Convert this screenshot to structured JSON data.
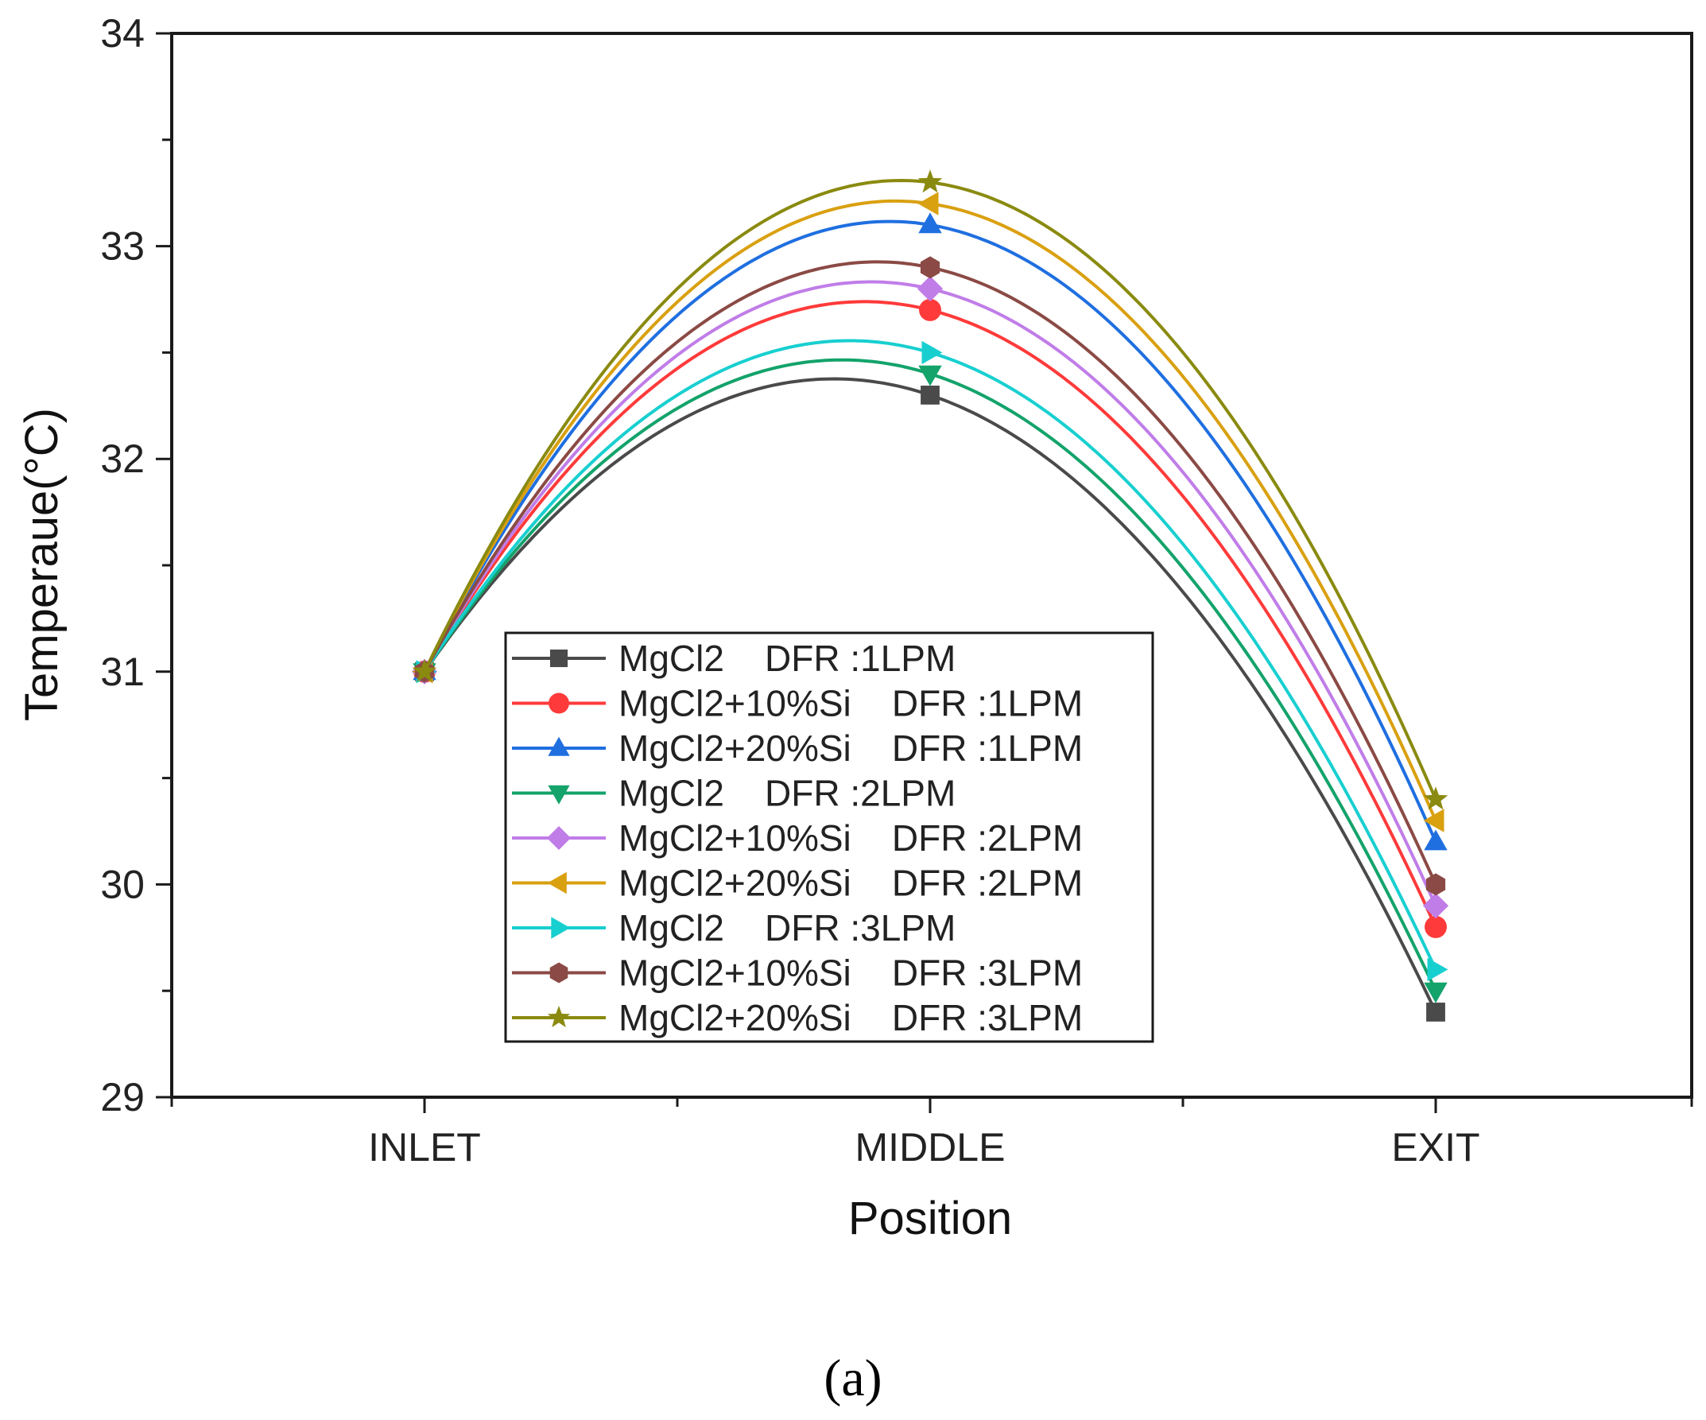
{
  "chart_data": {
    "type": "line",
    "title": "",
    "xlabel": "Position",
    "ylabel": "Temperaue(°C)",
    "categories": [
      "INLET",
      "MIDDLE",
      "EXIT"
    ],
    "ylim": [
      29,
      34
    ],
    "yticks": [
      29,
      30,
      31,
      32,
      33,
      34
    ],
    "grid": false,
    "legend_position": "bottom-center",
    "caption": "(a)",
    "series": [
      {
        "name": "MgCl2    DFR :1LPM",
        "color": "#4a4a4a",
        "marker": "square",
        "values": [
          31,
          32.3,
          29.4
        ]
      },
      {
        "name": "MgCl2+10%Si    DFR :1LPM",
        "color": "#ff3a3a",
        "marker": "circle",
        "values": [
          31,
          32.7,
          29.8
        ]
      },
      {
        "name": "MgCl2+20%Si    DFR :1LPM",
        "color": "#1f6fe0",
        "marker": "triangle-up",
        "values": [
          31,
          33.1,
          30.2
        ]
      },
      {
        "name": "MgCl2    DFR :2LPM",
        "color": "#13a36b",
        "marker": "triangle-down",
        "values": [
          31,
          32.4,
          29.5
        ]
      },
      {
        "name": "MgCl2+10%Si    DFR :2LPM",
        "color": "#c07de8",
        "marker": "diamond",
        "values": [
          31,
          32.8,
          29.9
        ]
      },
      {
        "name": "MgCl2+20%Si    DFR :2LPM",
        "color": "#d9a010",
        "marker": "triangle-left",
        "values": [
          31,
          33.2,
          30.3
        ]
      },
      {
        "name": "MgCl2    DFR :3LPM",
        "color": "#18cfd0",
        "marker": "triangle-right",
        "values": [
          31,
          32.5,
          29.6
        ]
      },
      {
        "name": "MgCl2+10%Si    DFR :3LPM",
        "color": "#8b4a45",
        "marker": "hexagon",
        "values": [
          31,
          32.9,
          30.0
        ]
      },
      {
        "name": "MgCl2+20%Si    DFR :3LPM",
        "color": "#8a8a10",
        "marker": "star",
        "values": [
          31,
          33.3,
          30.4
        ]
      }
    ]
  }
}
